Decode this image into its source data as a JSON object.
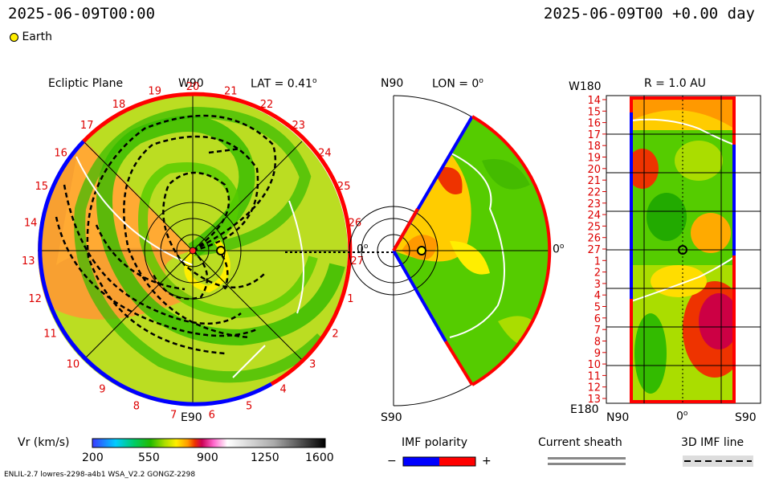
{
  "header": {
    "datetime_left": "2025-06-09T00:00",
    "datetime_right": "2025-06-09T00 +0.00 day",
    "legend_earth": "Earth"
  },
  "panels": {
    "ecliptic": {
      "title": "Ecliptic Plane",
      "top_label": "W90",
      "lat_label": "LAT = 0.41",
      "bottom_label": "E90",
      "right_label": "0",
      "carrington_labels": [
        "20",
        "21",
        "22",
        "23",
        "24",
        "25",
        "26",
        "27",
        "1",
        "2",
        "3",
        "4",
        "5",
        "6",
        "7",
        "8",
        "9",
        "10",
        "11",
        "12",
        "13",
        "14",
        "15",
        "16",
        "17",
        "18",
        "19"
      ]
    },
    "meridional": {
      "top_label": "N90",
      "lon_label": "LON = 0",
      "bottom_label": "S90",
      "right_label": "0"
    },
    "sphere": {
      "top_label": "W180",
      "r_label": "R = 1.0 AU",
      "bottom_label": "E180",
      "x_labels": [
        "N90",
        "0",
        "S90"
      ],
      "rotation_labels": [
        "14",
        "15",
        "16",
        "17",
        "18",
        "19",
        "20",
        "21",
        "22",
        "23",
        "24",
        "25",
        "26",
        "27",
        "1",
        "2",
        "3",
        "4",
        "5",
        "6",
        "7",
        "8",
        "9",
        "10",
        "11",
        "12",
        "13"
      ]
    }
  },
  "colorbar": {
    "title": "Vr (km/s)",
    "ticks": [
      "200",
      "550",
      "900",
      "1250",
      "1600"
    ],
    "range": [
      200,
      1600
    ],
    "colors": [
      "#3a3aff",
      "#00ccff",
      "#00cc66",
      "#22bb00",
      "#aadd00",
      "#ffee00",
      "#ff9900",
      "#ee3300",
      "#cc0055",
      "#ff66cc",
      "#ffffff",
      "#aaaaaa",
      "#000000"
    ]
  },
  "legends": {
    "imf_title": "IMF polarity",
    "imf_minus": "−",
    "imf_plus": "+",
    "imf_neg_color": "#0000ff",
    "imf_pos_color": "#ff0000",
    "sheath_title": "Current sheath",
    "imf_line_title": "3D IMF line"
  },
  "footer": {
    "model_info": "ENLIL-2.7 lowres-2298-a4b1 WSA_V2.2 GONGZ-2298"
  },
  "chart_data": {
    "type": "heatmap",
    "quantity": "Vr (km/s)",
    "color_range": [
      200,
      1600
    ],
    "earth_position": {
      "radius_au": 1.0,
      "lon_deg": 0,
      "lat_deg": 0.41
    },
    "time_offset_day": 0.0
  }
}
